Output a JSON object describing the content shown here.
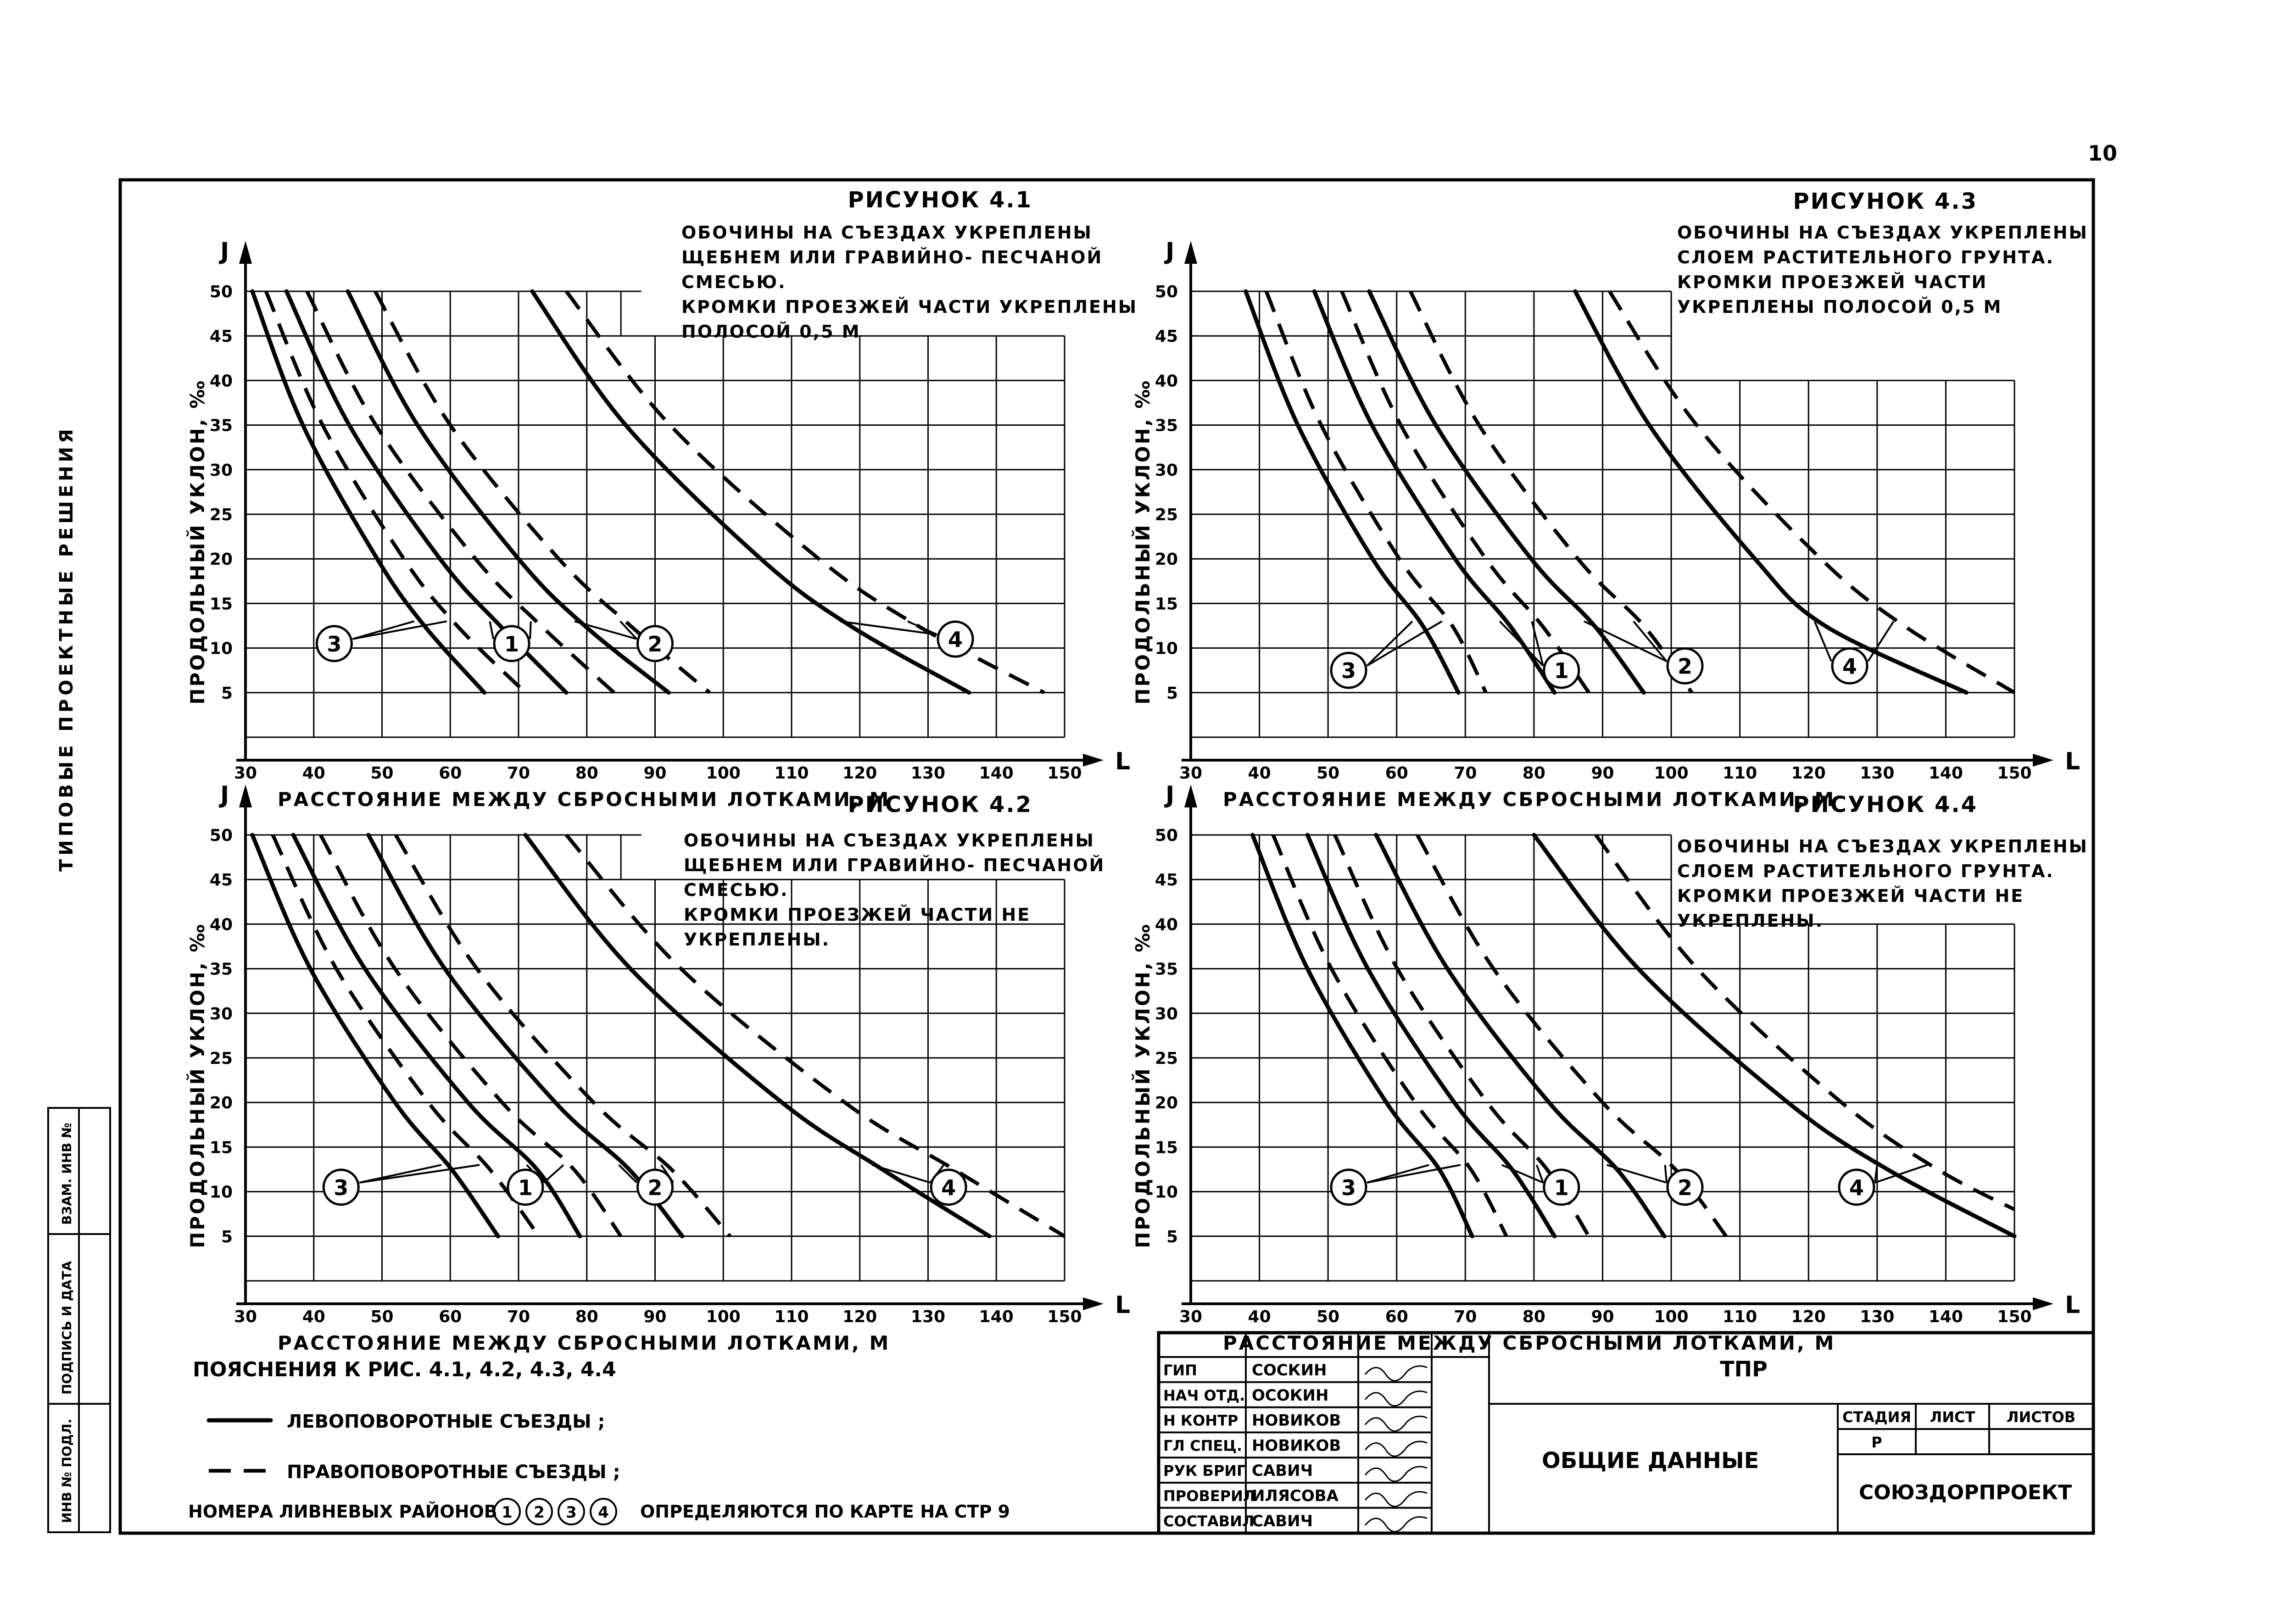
{
  "sheet": {
    "page_number": "10",
    "side_label": "ТИПОВЫЕ  ПРОЕКТНЫЕ  РЕШЕНИЯ",
    "stamp_labels": [
      "ИНВ № ПОДЛ.",
      "ПОДПИСЬ И ДАТА",
      "ВЗАМ. ИНВ №"
    ]
  },
  "shared_axes": {
    "y_label": "ПРОДОЛЬНЫЙ УКЛОН, ‰",
    "y_symbol": "J",
    "x_symbol": "L",
    "x_label": "РАССТОЯНИЕ МЕЖДУ СБРОСНЫМИ ЛОТКАМИ, М",
    "x_ticks": [
      "30",
      "40",
      "50",
      "60",
      "70",
      "80",
      "90",
      "100",
      "110",
      "120",
      "130",
      "140",
      "150"
    ],
    "y_ticks": [
      "5",
      "10",
      "15",
      "20",
      "25",
      "30",
      "35",
      "40",
      "45",
      "50"
    ],
    "curve_labels": [
      "1",
      "2",
      "3",
      "4"
    ]
  },
  "chart_data": [
    {
      "type": "line",
      "title": "РИСУНОК 4.1",
      "caption": [
        "ОБОЧИНЫ НА СЪЕЗДАХ УКРЕПЛЕНЫ",
        "ЩЕБНЕМ ИЛИ ГРАВИЙНО- ПЕСЧАНОЙ",
        "СМЕСЬЮ.",
        "КРОМКИ ПРОЕЗЖЕЙ ЧАСТИ УКРЕПЛЕНЫ",
        "ПОЛОСОЙ  0,5 М"
      ],
      "xlim": [
        30,
        150
      ],
      "ylim": [
        0,
        50
      ],
      "series": [
        {
          "name": "3",
          "style": "solid",
          "points": [
            [
              31,
              50
            ],
            [
              38.4,
              35
            ],
            [
              49.3,
              20
            ],
            [
              56.2,
              12.5
            ],
            [
              65,
              5
            ]
          ]
        },
        {
          "name": "3",
          "style": "dashed",
          "points": [
            [
              33,
              50
            ],
            [
              41.3,
              35
            ],
            [
              53.2,
              20
            ],
            [
              61,
              12.5
            ],
            [
              71,
              5
            ]
          ]
        },
        {
          "name": "1",
          "style": "solid",
          "points": [
            [
              36,
              50
            ],
            [
              45.2,
              35
            ],
            [
              58.5,
              20
            ],
            [
              67.3,
              12.5
            ],
            [
              77,
              5
            ]
          ]
        },
        {
          "name": "1",
          "style": "dashed",
          "points": [
            [
              39,
              50
            ],
            [
              49.1,
              35
            ],
            [
              63.7,
              20
            ],
            [
              73.3,
              12.5
            ],
            [
              84,
              5
            ]
          ]
        },
        {
          "name": "2",
          "style": "solid",
          "points": [
            [
              45,
              50
            ],
            [
              55.2,
              35
            ],
            [
              70,
              20
            ],
            [
              79.7,
              12.5
            ],
            [
              92,
              5
            ]
          ]
        },
        {
          "name": "2",
          "style": "dashed",
          "points": [
            [
              49,
              50
            ],
            [
              60,
              35
            ],
            [
              75.9,
              20
            ],
            [
              86.4,
              12.5
            ],
            [
              98,
              5
            ]
          ]
        },
        {
          "name": "4",
          "style": "solid",
          "points": [
            [
              72,
              50
            ],
            [
              85.7,
              35
            ],
            [
              105.5,
              20
            ],
            [
              118.6,
              12.5
            ],
            [
              136,
              5
            ]
          ]
        },
        {
          "name": "4",
          "style": "dashed",
          "points": [
            [
              77,
              50
            ],
            [
              92.2,
              35
            ],
            [
              114,
              20
            ],
            [
              128.5,
              12.5
            ],
            [
              147,
              5
            ]
          ]
        }
      ]
    },
    {
      "type": "line",
      "title": "РИСУНОК 4.2",
      "caption": [
        "ОБОЧИНЫ НА СЪЕЗДАХ УКРЕПЛЕНЫ",
        "ЩЕБНЕМ ИЛИ ГРАВИЙНО- ПЕСЧАНОЙ",
        "СМЕСЬЮ.",
        "КРОМКИ ПРОЕЗЖЕЙ ЧАСТИ  НЕ",
        "УКРЕПЛЕНЫ."
      ],
      "xlim": [
        30,
        150
      ],
      "ylim": [
        0,
        50
      ],
      "series": [
        {
          "name": "3",
          "style": "solid",
          "points": [
            [
              31,
              50
            ],
            [
              39.5,
              35
            ],
            [
              51.9,
              20
            ],
            [
              60.2,
              12.5
            ],
            [
              67,
              5
            ]
          ]
        },
        {
          "name": "3",
          "style": "dashed",
          "points": [
            [
              34,
              50
            ],
            [
              43.3,
              35
            ],
            [
              56.8,
              20
            ],
            [
              65.8,
              12.5
            ],
            [
              73,
              5
            ]
          ]
        },
        {
          "name": "1",
          "style": "solid",
          "points": [
            [
              37,
              50
            ],
            [
              47.5,
              35
            ],
            [
              62.6,
              20
            ],
            [
              72.7,
              12.5
            ],
            [
              79,
              5
            ]
          ]
        },
        {
          "name": "1",
          "style": "dashed",
          "points": [
            [
              41,
              50
            ],
            [
              51.9,
              35
            ],
            [
              67.6,
              20
            ],
            [
              78.1,
              12.5
            ],
            [
              85,
              5
            ]
          ]
        },
        {
          "name": "2",
          "style": "solid",
          "points": [
            [
              48,
              50
            ],
            [
              59.2,
              35
            ],
            [
              75.4,
              20
            ],
            [
              86.2,
              12.5
            ],
            [
              94,
              5
            ]
          ]
        },
        {
          "name": "2",
          "style": "dashed",
          "points": [
            [
              52,
              50
            ],
            [
              63.9,
              35
            ],
            [
              81,
              20
            ],
            [
              92.4,
              12.5
            ],
            [
              101,
              5
            ]
          ]
        },
        {
          "name": "4",
          "style": "solid",
          "points": [
            [
              71,
              50
            ],
            [
              86.4,
              35
            ],
            [
              108.6,
              20
            ],
            [
              123.3,
              12.5
            ],
            [
              139,
              5
            ]
          ]
        },
        {
          "name": "4",
          "style": "dashed",
          "points": [
            [
              77,
              50
            ],
            [
              93.8,
              35
            ],
            [
              117.8,
              20
            ],
            [
              133.8,
              12.5
            ],
            [
              150,
              5
            ]
          ]
        }
      ]
    },
    {
      "type": "line",
      "title": "РИСУНОК 4.3",
      "caption": [
        "ОБОЧИНЫ НА СЪЕЗДАХ УКРЕПЛЕНЫ",
        "СЛОЕМ РАСТИТЕЛЬНОГО ГРУНТА.",
        "КРОМКИ ПРОЕЗЖЕЙ ЧАСТИ",
        "УКРЕПЛЕНЫ  ПОЛОСОЙ  0,5 М"
      ],
      "xlim": [
        30,
        150
      ],
      "ylim": [
        0,
        50
      ],
      "series": [
        {
          "name": "3",
          "style": "solid",
          "points": [
            [
              38,
              50
            ],
            [
              45.6,
              35
            ],
            [
              56.5,
              20
            ],
            [
              63.8,
              12.5
            ],
            [
              69,
              5
            ]
          ]
        },
        {
          "name": "3",
          "style": "dashed",
          "points": [
            [
              41,
              50
            ],
            [
              49,
              35
            ],
            [
              60.4,
              20
            ],
            [
              68.1,
              12.5
            ],
            [
              73,
              5
            ]
          ]
        },
        {
          "name": "1",
          "style": "solid",
          "points": [
            [
              48,
              50
            ],
            [
              56.4,
              35
            ],
            [
              68.5,
              20
            ],
            [
              76.5,
              12.5
            ],
            [
              83,
              5
            ]
          ]
        },
        {
          "name": "1",
          "style": "dashed",
          "points": [
            [
              52,
              50
            ],
            [
              60.6,
              35
            ],
            [
              73,
              20
            ],
            [
              81.2,
              12.5
            ],
            [
              88,
              5
            ]
          ]
        },
        {
          "name": "2",
          "style": "solid",
          "points": [
            [
              56,
              50
            ],
            [
              65.7,
              35
            ],
            [
              79.6,
              20
            ],
            [
              88.8,
              12.5
            ],
            [
              96,
              5
            ]
          ]
        },
        {
          "name": "2",
          "style": "dashed",
          "points": [
            [
              62,
              50
            ],
            [
              72,
              35
            ],
            [
              86.4,
              20
            ],
            [
              96,
              12.5
            ],
            [
              103,
              5
            ]
          ]
        },
        {
          "name": "4",
          "style": "solid",
          "points": [
            [
              86,
              50
            ],
            [
              96.8,
              35
            ],
            [
              112.2,
              20
            ],
            [
              122.4,
              12.5
            ],
            [
              143,
              5
            ]
          ]
        },
        {
          "name": "4",
          "style": "dashed",
          "points": [
            [
              91,
              50
            ],
            [
              103.7,
              35
            ],
            [
              121.8,
              20
            ],
            [
              133.9,
              12.5
            ],
            [
              150,
              5
            ]
          ]
        }
      ]
    },
    {
      "type": "line",
      "title": "РИСУНОК 4.4",
      "caption": [
        "ОБОЧИНЫ НА СЪЕЗДАХ УКРЕПЛЕНЫ",
        "СЛОЕМ РАСТИТЕЛЬНОГО ГРУНТА.",
        "КРОМКИ ПРОЕЗЖЕЙ ЧАСТИ  НЕ",
        "УКРЕПЛЕНЫ."
      ],
      "xlim": [
        30,
        150
      ],
      "ylim": [
        0,
        50
      ],
      "series": [
        {
          "name": "3",
          "style": "solid",
          "points": [
            [
              39,
              50
            ],
            [
              47,
              35
            ],
            [
              58.5,
              20
            ],
            [
              66.2,
              12.5
            ],
            [
              71,
              5
            ]
          ]
        },
        {
          "name": "3",
          "style": "dashed",
          "points": [
            [
              42,
              50
            ],
            [
              50.5,
              35
            ],
            [
              62.7,
              20
            ],
            [
              70.8,
              12.5
            ],
            [
              76,
              5
            ]
          ]
        },
        {
          "name": "1",
          "style": "solid",
          "points": [
            [
              47,
              50
            ],
            [
              55.8,
              35
            ],
            [
              68.4,
              20
            ],
            [
              76.8,
              12.5
            ],
            [
              83,
              5
            ]
          ]
        },
        {
          "name": "1",
          "style": "dashed",
          "points": [
            [
              51,
              50
            ],
            [
              60.1,
              35
            ],
            [
              73.2,
              20
            ],
            [
              81.9,
              12.5
            ],
            [
              88,
              5
            ]
          ]
        },
        {
          "name": "2",
          "style": "solid",
          "points": [
            [
              57,
              50
            ],
            [
              67.4,
              35
            ],
            [
              82.2,
              20
            ],
            [
              92.1,
              12.5
            ],
            [
              99,
              5
            ]
          ]
        },
        {
          "name": "2",
          "style": "dashed",
          "points": [
            [
              63,
              50
            ],
            [
              74.1,
              35
            ],
            [
              90,
              20
            ],
            [
              100.6,
              12.5
            ],
            [
              108,
              5
            ]
          ]
        },
        {
          "name": "4",
          "style": "solid",
          "points": [
            [
              80,
              50
            ],
            [
              95.2,
              35
            ],
            [
              117,
              20
            ],
            [
              131.5,
              12.5
            ],
            [
              150,
              5
            ]
          ]
        },
        {
          "name": "4",
          "style": "dashed",
          "points": [
            [
              89,
              50
            ],
            [
              103.8,
              35
            ],
            [
              124.8,
              20
            ],
            [
              138.8,
              12.5
            ],
            [
              150,
              8
            ]
          ]
        }
      ]
    }
  ],
  "legend": {
    "heading": "ПОЯСНЕНИЯ  К  РИС. 4.1, 4.2, 4.3, 4.4",
    "solid_label": "ЛЕВОПОВОРОТНЫЕ  СЪЕЗДЫ ;",
    "dashed_label": "ПРАВОПОВОРОТНЫЕ  СЪЕЗДЫ ;",
    "note_prefix": "НОМЕРА  ЛИВНЕВЫХ  РАЙОНОВ",
    "note_suffix": "ОПРЕДЕЛЯЮТСЯ  ПО  КАРТЕ  НА  СТР  9"
  },
  "title_block": {
    "roles": [
      {
        "role": "ГИП",
        "name": "СОСКИН"
      },
      {
        "role": "НАЧ ОТД.",
        "name": "ОСОКИН"
      },
      {
        "role": "Н КОНТР",
        "name": "НОВИКОВ"
      },
      {
        "role": "ГЛ СПЕЦ.",
        "name": "НОВИКОВ"
      },
      {
        "role": "РУК БРИГ",
        "name": "САВИЧ"
      },
      {
        "role": "ПРОВЕРИЛ",
        "name": "ИЛЯСОВА"
      },
      {
        "role": "СОСТАВИЛ",
        "name": "САВИЧ"
      }
    ],
    "project_code": "ТПР",
    "document_title": "ОБЩИЕ  ДАННЫЕ",
    "stage_header": "СТАДИЯ",
    "sheet_header": "ЛИСТ",
    "sheets_header": "ЛИСТОВ",
    "stage_value": "Р",
    "organization": "СОЮЗДОРПРОЕКТ"
  }
}
